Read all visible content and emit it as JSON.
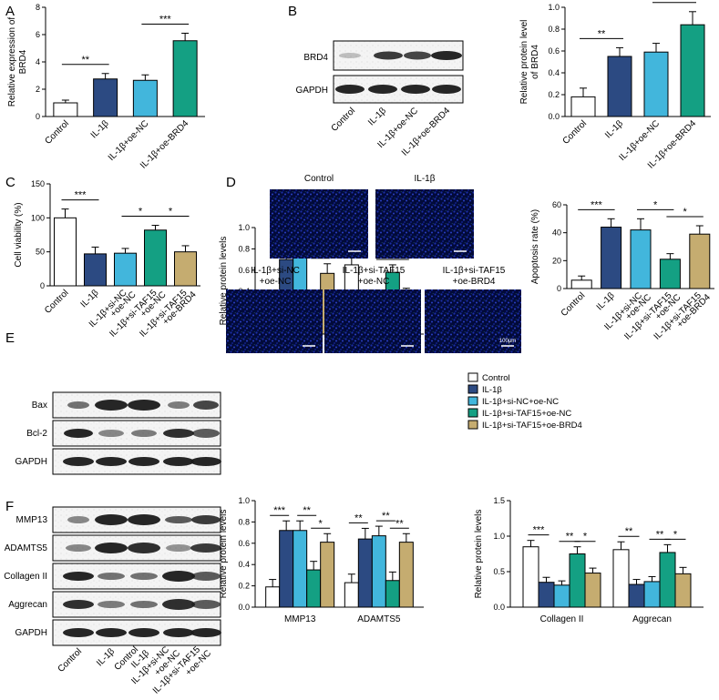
{
  "palette": {
    "control": "#ffffff",
    "il1b": "#2c4a82",
    "cyan": "#42b6dc",
    "teal": "#14a083",
    "tan": "#c5ac70"
  },
  "panels": {
    "A": "A",
    "B": "B",
    "C": "C",
    "D": "D",
    "E": "E",
    "F": "F"
  },
  "legend": {
    "items": [
      {
        "label": "Control",
        "color": "#ffffff"
      },
      {
        "label": "IL-1β",
        "color": "#2c4a82"
      },
      {
        "label": "IL-1β+si-NC+oe-NC",
        "color": "#42b6dc"
      },
      {
        "label": "IL-1β+si-TAF15+oe-NC",
        "color": "#14a083"
      },
      {
        "label": "IL-1β+si-TAF15+oe-BRD4",
        "color": "#c5ac70"
      }
    ]
  },
  "blots": {
    "B": {
      "labels": [
        "BRD4",
        "GAPDH"
      ],
      "lanes": [
        "Control",
        "IL-1β",
        "IL-1β+oe-NC",
        "IL-1β+oe-BRD4"
      ]
    },
    "E": {
      "labels": [
        "Bax",
        "Bcl-2",
        "GAPDH"
      ]
    },
    "F": {
      "labels": [
        "MMP13",
        "ADAMTS5",
        "Collagen II",
        "Aggrecan",
        "GAPDH"
      ],
      "lanes": [
        "Control",
        "IL-1β",
        "IL-1β+si-NC",
        "+oe-NC",
        "IL-1β+si-TAF15",
        "+oe-NC",
        "IL-1β+si-TAF15",
        "+oe-BRD4"
      ]
    }
  },
  "micrographs": {
    "top": [
      "Control",
      "IL-1β"
    ],
    "bottom": [
      [
        "IL-1β+si-NC",
        "+oe-NC"
      ],
      [
        "IL-1β+si-TAF15",
        "+oe-NC"
      ],
      [
        "IL-1β+si-TAF15",
        "+oe-BRD4"
      ]
    ],
    "scalebar": "100μm"
  },
  "chart_data": [
    {
      "id": "A",
      "type": "bar",
      "categories": [
        "Control",
        "IL-1β",
        "IL-1β+oe-NC",
        "IL-1β+oe-BRD4"
      ],
      "values": [
        1.0,
        2.75,
        2.65,
        5.55
      ],
      "errors": [
        0.2,
        0.4,
        0.4,
        0.55
      ],
      "colors": [
        "#ffffff",
        "#2c4a82",
        "#42b6dc",
        "#14a083"
      ],
      "ylabel": "Relative expression of BRD4",
      "ylim": [
        0,
        8
      ],
      "yticks": [
        0,
        2,
        4,
        6,
        8
      ],
      "significance": [
        {
          "from": 0,
          "to": 1,
          "label": "**"
        },
        {
          "from": 2,
          "to": 3,
          "label": "***"
        }
      ]
    },
    {
      "id": "B",
      "type": "bar",
      "categories": [
        "Control",
        "IL-1β",
        "IL-1β+oe-NC",
        "IL-1β+oe-BRD4"
      ],
      "values": [
        0.18,
        0.55,
        0.59,
        0.84
      ],
      "errors": [
        0.08,
        0.08,
        0.08,
        0.12
      ],
      "colors": [
        "#ffffff",
        "#2c4a82",
        "#42b6dc",
        "#14a083"
      ],
      "ylabel": "Relative protein level of BRD4",
      "ylim": [
        0,
        1.0
      ],
      "yticks": [
        0.0,
        0.2,
        0.4,
        0.6,
        0.8,
        1.0
      ],
      "significance": [
        {
          "from": 0,
          "to": 1,
          "label": "**"
        },
        {
          "from": 2,
          "to": 3,
          "label": "*"
        }
      ]
    },
    {
      "id": "C",
      "type": "bar",
      "categories": [
        "Control",
        "IL-1β",
        "IL-1β+si-NC+oe-NC",
        "IL-1β+si-TAF15+oe-NC",
        "IL-1β+si-TAF15+oe-BRD4"
      ],
      "values": [
        100,
        47,
        48,
        82,
        50
      ],
      "errors": [
        13,
        10,
        7,
        7,
        9
      ],
      "colors": [
        "#ffffff",
        "#2c4a82",
        "#42b6dc",
        "#14a083",
        "#c5ac70"
      ],
      "ylabel": "Cell viability (%)",
      "ylim": [
        0,
        150
      ],
      "yticks": [
        0,
        50,
        100,
        150
      ],
      "significance": [
        {
          "from": 0,
          "to": 1,
          "label": "***"
        },
        {
          "from": 2,
          "to": 3,
          "label": "*"
        },
        {
          "from": 3,
          "to": 4,
          "label": "*"
        }
      ]
    },
    {
      "id": "D",
      "type": "bar",
      "categories": [
        "Control",
        "IL-1β",
        "IL-1β+si-NC+oe-NC",
        "IL-1β+si-TAF15+oe-NC",
        "IL-1β+si-TAF15+oe-BRD4"
      ],
      "values": [
        6,
        44,
        42,
        21,
        39
      ],
      "errors": [
        3,
        6,
        8,
        4,
        6
      ],
      "colors": [
        "#ffffff",
        "#2c4a82",
        "#42b6dc",
        "#14a083",
        "#c5ac70"
      ],
      "ylabel": "Apoptosis rate (%)",
      "ylim": [
        0,
        60
      ],
      "yticks": [
        0,
        20,
        40,
        60
      ],
      "significance": [
        {
          "from": 0,
          "to": 1,
          "label": "***"
        },
        {
          "from": 2,
          "to": 3,
          "label": "*"
        },
        {
          "from": 3,
          "to": 4,
          "label": "*"
        }
      ]
    },
    {
      "id": "E",
      "type": "bar",
      "groups": [
        "Bax",
        "Bcl-2"
      ],
      "series": [
        {
          "values": [
            0.26,
            0.65
          ],
          "errors": [
            0.11,
            0.07
          ],
          "color": "#ffffff"
        },
        {
          "values": [
            0.7,
            0.22
          ],
          "errors": [
            0.09,
            0.07
          ],
          "color": "#2c4a82"
        },
        {
          "values": [
            0.74,
            0.21
          ],
          "errors": [
            0.11,
            0.09
          ],
          "color": "#42b6dc"
        },
        {
          "values": [
            0.31,
            0.58
          ],
          "errors": [
            0.06,
            0.07
          ],
          "color": "#14a083"
        },
        {
          "values": [
            0.57,
            0.36
          ],
          "errors": [
            0.09,
            0.07
          ],
          "color": "#c5ac70"
        }
      ],
      "ylabel": "Relative protein levels",
      "ylim": [
        0,
        1.0
      ],
      "yticks": [
        0.0,
        0.2,
        0.4,
        0.6,
        0.8,
        1.0
      ],
      "significance": [
        {
          "group": 0,
          "from": 0,
          "to": 1,
          "label": "**"
        },
        {
          "group": 0,
          "from": 2,
          "to": 3,
          "label": "**"
        },
        {
          "group": 0,
          "from": 3,
          "to": 4,
          "label": "*"
        },
        {
          "group": 1,
          "from": 0,
          "to": 1,
          "label": "***"
        },
        {
          "group": 1,
          "from": 2,
          "to": 3,
          "label": "**"
        },
        {
          "group": 1,
          "from": 3,
          "to": 4,
          "label": "*"
        }
      ]
    },
    {
      "id": "F1",
      "type": "bar",
      "groups": [
        "MMP13",
        "ADAMTS5"
      ],
      "series": [
        {
          "values": [
            0.19,
            0.23
          ],
          "errors": [
            0.07,
            0.08
          ],
          "color": "#ffffff"
        },
        {
          "values": [
            0.72,
            0.64
          ],
          "errors": [
            0.09,
            0.1
          ],
          "color": "#2c4a82"
        },
        {
          "values": [
            0.72,
            0.67
          ],
          "errors": [
            0.09,
            0.09
          ],
          "color": "#42b6dc"
        },
        {
          "values": [
            0.35,
            0.25
          ],
          "errors": [
            0.08,
            0.08
          ],
          "color": "#14a083"
        },
        {
          "values": [
            0.61,
            0.61
          ],
          "errors": [
            0.08,
            0.08
          ],
          "color": "#c5ac70"
        }
      ],
      "ylabel": "Relative protein levels",
      "ylim": [
        0,
        1.0
      ],
      "yticks": [
        0.0,
        0.2,
        0.4,
        0.6,
        0.8,
        1.0
      ],
      "significance": [
        {
          "group": 0,
          "from": 0,
          "to": 1,
          "label": "***"
        },
        {
          "group": 0,
          "from": 2,
          "to": 3,
          "label": "**"
        },
        {
          "group": 0,
          "from": 3,
          "to": 4,
          "label": "*"
        },
        {
          "group": 1,
          "from": 0,
          "to": 1,
          "label": "**"
        },
        {
          "group": 1,
          "from": 2,
          "to": 3,
          "label": "**"
        },
        {
          "group": 1,
          "from": 3,
          "to": 4,
          "label": "**"
        }
      ]
    },
    {
      "id": "F2",
      "type": "bar",
      "groups": [
        "Collagen II",
        "Aggrecan"
      ],
      "series": [
        {
          "values": [
            0.85,
            0.81
          ],
          "errors": [
            0.09,
            0.11
          ],
          "color": "#ffffff"
        },
        {
          "values": [
            0.35,
            0.32
          ],
          "errors": [
            0.07,
            0.07
          ],
          "color": "#2c4a82"
        },
        {
          "values": [
            0.31,
            0.36
          ],
          "errors": [
            0.06,
            0.07
          ],
          "color": "#42b6dc"
        },
        {
          "values": [
            0.75,
            0.77
          ],
          "errors": [
            0.1,
            0.11
          ],
          "color": "#14a083"
        },
        {
          "values": [
            0.48,
            0.47
          ],
          "errors": [
            0.07,
            0.09
          ],
          "color": "#c5ac70"
        }
      ],
      "ylabel": "Relative protein levels",
      "ylim": [
        0,
        1.5
      ],
      "yticks": [
        0.0,
        0.5,
        1.0,
        1.5
      ],
      "significance": [
        {
          "group": 0,
          "from": 0,
          "to": 1,
          "label": "***"
        },
        {
          "group": 0,
          "from": 2,
          "to": 3,
          "label": "**"
        },
        {
          "group": 0,
          "from": 3,
          "to": 4,
          "label": "*"
        },
        {
          "group": 1,
          "from": 0,
          "to": 1,
          "label": "**"
        },
        {
          "group": 1,
          "from": 2,
          "to": 3,
          "label": "**"
        },
        {
          "group": 1,
          "from": 3,
          "to": 4,
          "label": "*"
        }
      ]
    }
  ]
}
